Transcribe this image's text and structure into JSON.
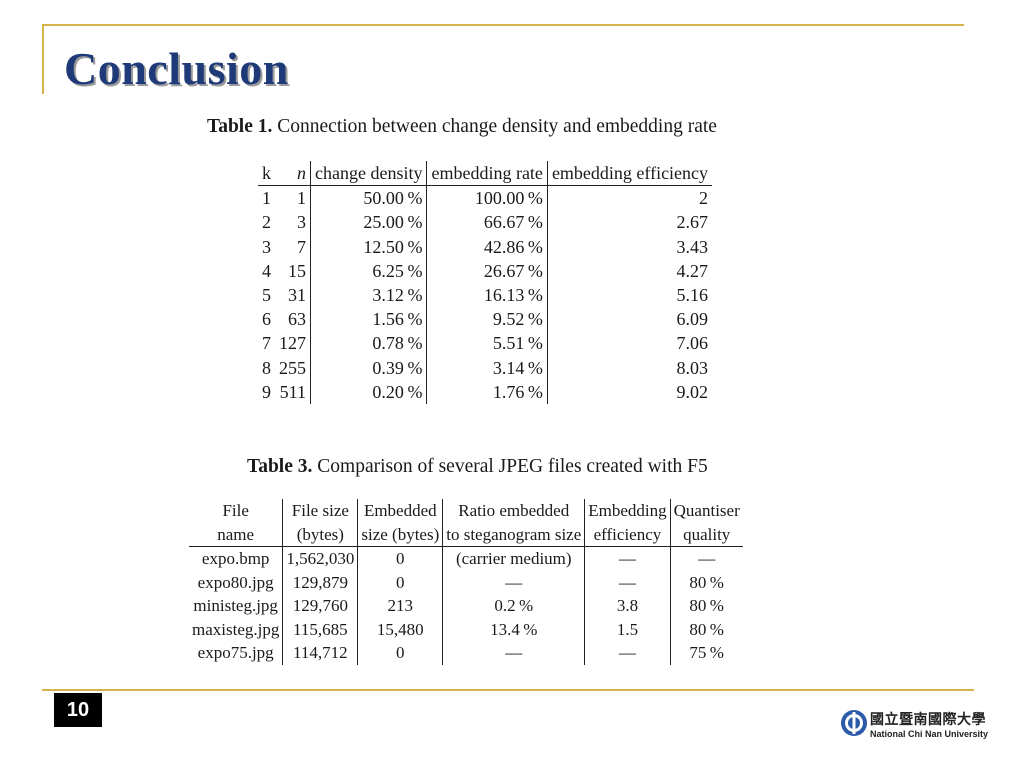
{
  "slide": {
    "title": "Conclusion",
    "page_number": "10"
  },
  "table1": {
    "caption_label": "Table 1.",
    "caption_text": "Connection between change density and embedding rate",
    "headers": [
      "k",
      "n",
      "change density",
      "embedding rate",
      "embedding efficiency"
    ],
    "rows": [
      [
        "1",
        "1",
        "50.00 %",
        "100.00 %",
        "2"
      ],
      [
        "2",
        "3",
        "25.00 %",
        "66.67 %",
        "2.67"
      ],
      [
        "3",
        "7",
        "12.50 %",
        "42.86 %",
        "3.43"
      ],
      [
        "4",
        "15",
        "6.25 %",
        "26.67 %",
        "4.27"
      ],
      [
        "5",
        "31",
        "3.12 %",
        "16.13 %",
        "5.16"
      ],
      [
        "6",
        "63",
        "1.56 %",
        "9.52 %",
        "6.09"
      ],
      [
        "7",
        "127",
        "0.78 %",
        "5.51 %",
        "7.06"
      ],
      [
        "8",
        "255",
        "0.39 %",
        "3.14 %",
        "8.03"
      ],
      [
        "9",
        "511",
        "0.20 %",
        "1.76 %",
        "9.02"
      ]
    ]
  },
  "table2": {
    "caption_label": "Table 3.",
    "caption_text": "Comparison of several JPEG files created with F5",
    "headers_line1": [
      "File",
      "File size",
      "Embedded",
      "Ratio embedded",
      "Embedding",
      "Quantiser"
    ],
    "headers_line2": [
      "name",
      "(bytes)",
      "size (bytes)",
      "to steganogram size",
      "efficiency",
      "quality"
    ],
    "rows": [
      [
        "expo.bmp",
        "1,562,030",
        "0",
        "(carrier medium)",
        "—",
        "—"
      ],
      [
        "expo80.jpg",
        "129,879",
        "0",
        "—",
        "—",
        "80 %"
      ],
      [
        "ministeg.jpg",
        "129,760",
        "213",
        "0.2 %",
        "3.8",
        "80 %"
      ],
      [
        "maxisteg.jpg",
        "115,685",
        "15,480",
        "13.4 %",
        "1.5",
        "80 %"
      ],
      [
        "expo75.jpg",
        "114,712",
        "0",
        "—",
        "—",
        "75 %"
      ]
    ]
  },
  "logo": {
    "name_cn": "國立暨南國際大學",
    "name_en": "National Chi Nan University"
  },
  "colors": {
    "title": "#1f3a78",
    "accent_rule": "#d6b24a"
  }
}
